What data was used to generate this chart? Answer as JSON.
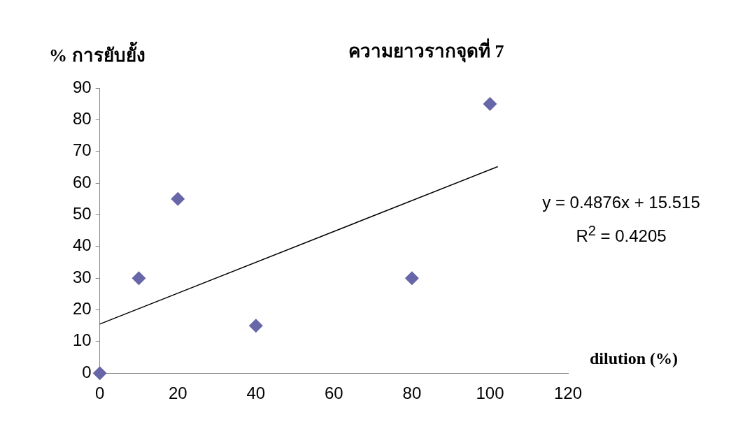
{
  "chart_data": {
    "type": "scatter",
    "title": "ความยาวรากจุดที่ 7",
    "xlabel": "dilution (%)",
    "ylabel": "% การยับยั้ง",
    "annotations": [
      "y = 0.4876x + 15.515",
      "R$^{2}$ = 0.4205"
    ],
    "xlim": [
      0,
      120
    ],
    "xticks": [
      0,
      20,
      40,
      60,
      80,
      100,
      120
    ],
    "ylim": [
      0,
      90
    ],
    "yticks": [
      0,
      10,
      20,
      30,
      40,
      50,
      60,
      70,
      80,
      90
    ],
    "grid": false,
    "series": [
      {
        "type": "scatter",
        "color": "#6666a8",
        "marker": "diamond",
        "x": [
          0,
          10,
          20,
          40,
          80,
          100
        ],
        "values": [
          0,
          30,
          55,
          15,
          30,
          85
        ]
      },
      {
        "type": "line",
        "color": "#000000",
        "marker": "none",
        "x": [
          0,
          102
        ],
        "values": [
          15.5,
          65.2
        ]
      }
    ]
  }
}
